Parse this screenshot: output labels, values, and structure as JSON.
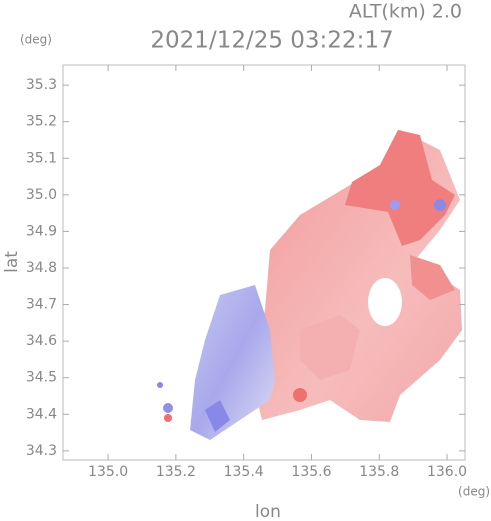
{
  "chart_data": {
    "type": "radar-map",
    "title": "ALT(km) 2.0",
    "subtitle": "2021/12/25 03:22:17",
    "y_unit": "(deg)",
    "x_unit": "(deg)",
    "ylabel": "lat",
    "xlabel": "lon",
    "xlim": [
      134.867,
      136.053
    ],
    "ylim": [
      34.275,
      35.355
    ],
    "xticks": [
      {
        "value": 135,
        "label": "135.0"
      },
      135.2,
      135.4,
      135.6,
      135.8,
      {
        "value": 136,
        "label": "136.0"
      }
    ],
    "yticks": [
      34.3,
      34.4,
      34.5,
      34.6,
      34.7,
      34.8,
      34.9,
      {
        "value": 35,
        "label": "35.0"
      },
      35.1,
      35.2,
      35.3
    ]
  }
}
